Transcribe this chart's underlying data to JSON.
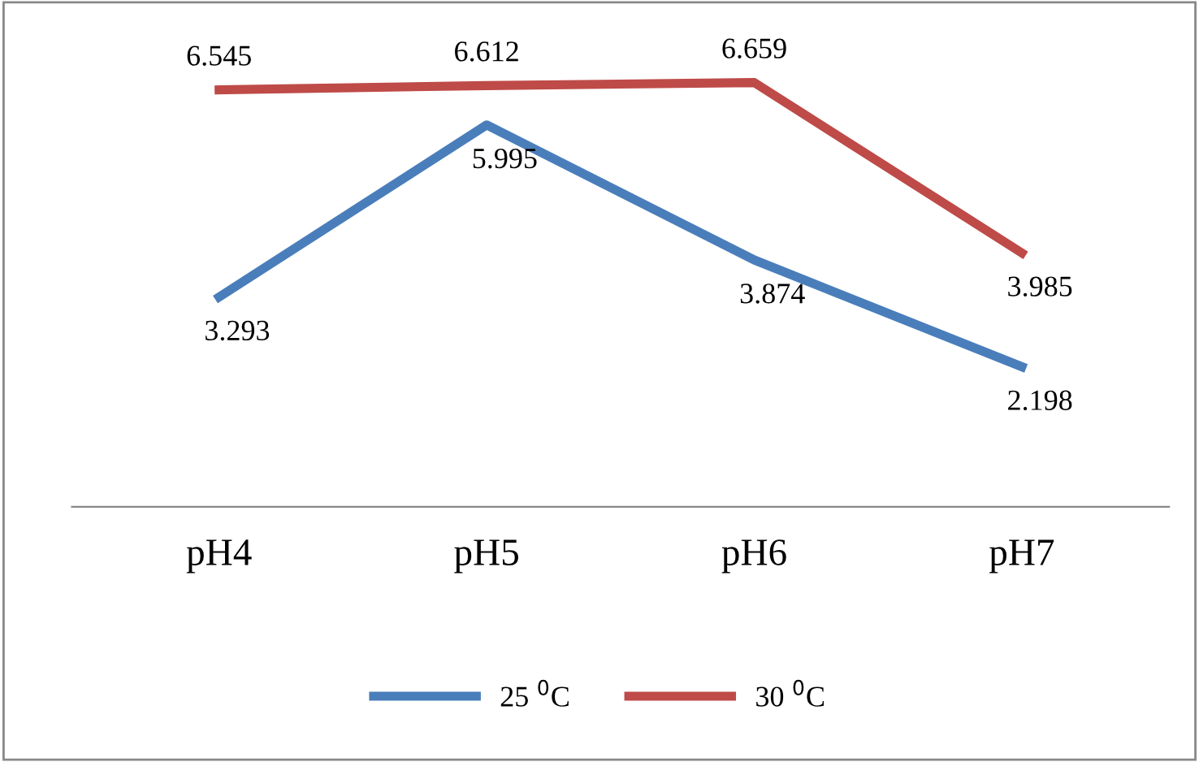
{
  "chart_data": {
    "type": "line",
    "categories": [
      "pH4",
      "pH5",
      "pH6",
      "pH7"
    ],
    "series": [
      {
        "name": "25 $^{0}$C",
        "color": "#4a7ebb",
        "values": [
          3.293,
          5.995,
          3.874,
          2.198
        ]
      },
      {
        "name": "30 $^{0}$C",
        "color": "#be4b48",
        "values": [
          6.545,
          6.612,
          6.659,
          3.985
        ]
      }
    ],
    "data_labels": true,
    "legend": "bottom",
    "grid": false,
    "marker": "none",
    "line_style": "solid"
  }
}
